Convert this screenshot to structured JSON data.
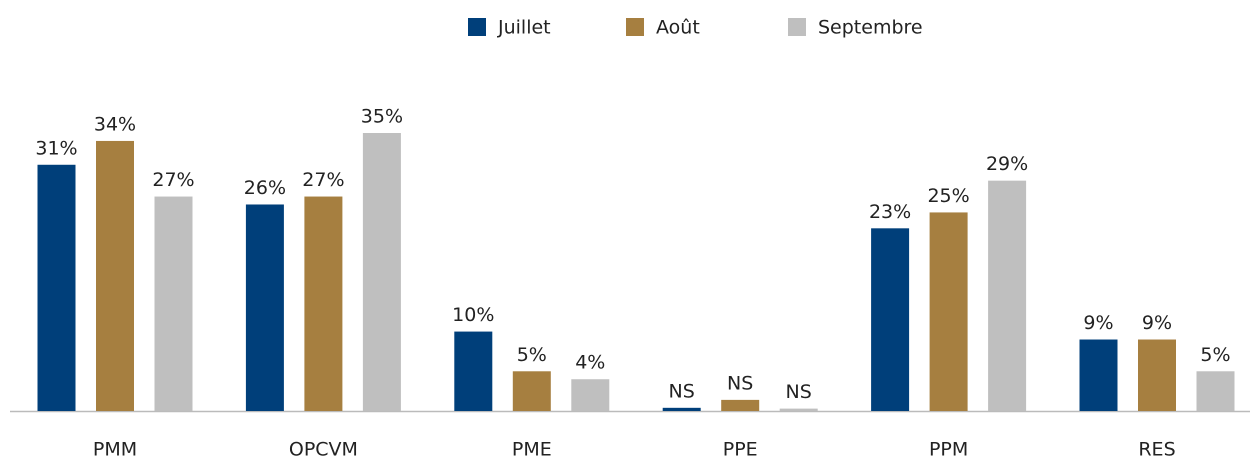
{
  "chart_data": {
    "type": "bar",
    "categories": [
      "PMM",
      "OPCVM",
      "PME",
      "PPE",
      "PPM",
      "RES"
    ],
    "series": [
      {
        "name": "Juillet",
        "color": "#003f7a",
        "values": [
          31,
          26,
          10,
          0.4,
          23,
          9
        ],
        "value_labels": [
          "31%",
          "26%",
          "10%",
          "NS",
          "23%",
          "9%"
        ]
      },
      {
        "name": "Août",
        "color": "#a67f40",
        "values": [
          34,
          27,
          5,
          1.4,
          25,
          9
        ],
        "value_labels": [
          "34%",
          "27%",
          "5%",
          "NS",
          "25%",
          "9%"
        ]
      },
      {
        "name": "Septembre",
        "color": "#bfbfbf",
        "values": [
          27,
          35,
          4,
          0.3,
          29,
          5
        ],
        "value_labels": [
          "27%",
          "35%",
          "4%",
          "NS",
          "29%",
          "5%"
        ]
      }
    ],
    "legend": "top"
  }
}
